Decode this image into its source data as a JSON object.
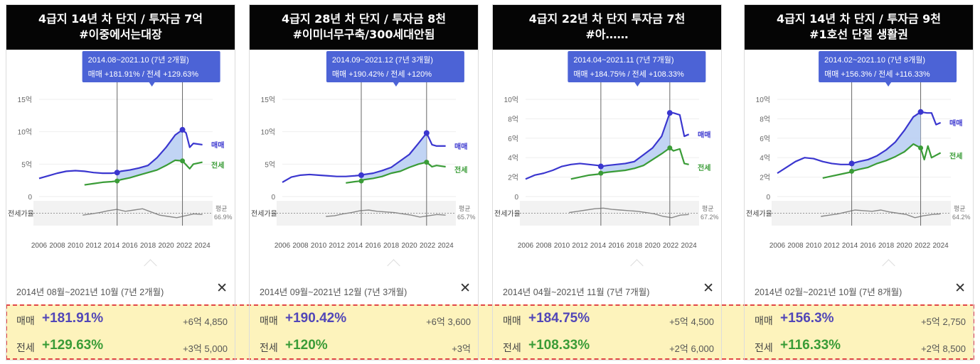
{
  "colors": {
    "sale": "#3a36cf",
    "rent": "#3a9c37",
    "fill": "#b6ccf2",
    "ratio": "#888888",
    "tooltip": "#4c63d6",
    "highlight": "#fdf3bc",
    "border_dashed": "#e24646"
  },
  "icons": {
    "close": "close-icon"
  },
  "chart_data": [
    {
      "type": "line",
      "title_line1": "4급지 14년 차 단지 / 투자금 7억",
      "title_line2": "#이중에서는대장",
      "x_ticks": [
        "2006",
        "2008",
        "2010",
        "2012",
        "2014",
        "2016",
        "2018",
        "2020",
        "2022",
        "2024"
      ],
      "xlim": [
        2006,
        2024.5
      ],
      "y_ticks": [
        "15억",
        "10억",
        "5억",
        "0"
      ],
      "y_tick_values": [
        15,
        10,
        5,
        0
      ],
      "ylim": [
        0,
        15
      ],
      "tooltip": {
        "line1": "2014.08~2021.10 (7년 2개월)",
        "line2": "매매 +181.91% / 전세 +129.63%"
      },
      "marker_start": 2014.6,
      "marker_end": 2021.8,
      "series": [
        {
          "name": "매매",
          "x": [
            2006,
            2007,
            2008,
            2009,
            2010,
            2011,
            2012,
            2013,
            2014,
            2014.6,
            2015,
            2016,
            2017,
            2018,
            2019,
            2020,
            2021,
            2021.8,
            2022.2,
            2022.6,
            2023,
            2024
          ],
          "values": [
            2.8,
            3.2,
            3.6,
            3.9,
            4.0,
            3.9,
            3.7,
            3.6,
            3.6,
            3.7,
            3.9,
            4.1,
            4.4,
            4.8,
            6.0,
            7.6,
            9.5,
            10.3,
            9.8,
            7.6,
            8.2,
            8.0
          ]
        },
        {
          "name": "전세",
          "x": [
            2011,
            2012,
            2013,
            2014,
            2014.6,
            2015,
            2016,
            2017,
            2018,
            2019,
            2020,
            2021,
            2021.8,
            2022.2,
            2022.6,
            2023,
            2024
          ],
          "values": [
            1.8,
            2.0,
            2.2,
            2.3,
            2.4,
            2.6,
            2.9,
            3.3,
            3.7,
            4.1,
            4.8,
            5.6,
            5.5,
            4.9,
            4.3,
            5.0,
            5.3
          ]
        }
      ],
      "ratio": {
        "label": "전세가율",
        "avg_label": "평균",
        "avg_value": "66.9%",
        "values": [
          62,
          64,
          66,
          69,
          71,
          68,
          70,
          72,
          67,
          62,
          60,
          58,
          61,
          64,
          63
        ]
      },
      "range_text": "2014년 08월~2021년 10월 (7년 2개월)",
      "sale": {
        "label": "매매",
        "pct": "+181.91%",
        "amount": "+6억 4,850"
      },
      "rent": {
        "label": "전세",
        "pct": "+129.63%",
        "amount": "+3억 5,000"
      }
    },
    {
      "type": "line",
      "title_line1": "4급지 28년 차 단지 / 투자금 8천",
      "title_line2": "#이미너무구축/300세대안됨",
      "x_ticks": [
        "2006",
        "2008",
        "2010",
        "2012",
        "2014",
        "2016",
        "2018",
        "2020",
        "2022",
        "2024"
      ],
      "xlim": [
        2006,
        2024.5
      ],
      "y_ticks": [
        "15억",
        "10억",
        "5억",
        "0"
      ],
      "y_tick_values": [
        15,
        10,
        5,
        0
      ],
      "ylim": [
        0,
        15
      ],
      "tooltip": {
        "line1": "2014.09~2021.12 (7년 3개월)",
        "line2": "매매 +190.42% / 전세 +120%"
      },
      "marker_start": 2014.7,
      "marker_end": 2021.9,
      "series": [
        {
          "name": "매매",
          "x": [
            2006,
            2007,
            2008,
            2009,
            2010,
            2011,
            2012,
            2013,
            2014,
            2014.7,
            2015,
            2016,
            2017,
            2018,
            2019,
            2020,
            2021,
            2021.9,
            2022.5,
            2023,
            2024
          ],
          "values": [
            2.2,
            3.0,
            3.3,
            3.4,
            3.3,
            3.2,
            3.1,
            3.1,
            3.2,
            3.3,
            3.4,
            3.6,
            4.0,
            4.5,
            5.5,
            6.5,
            8.2,
            9.8,
            8.0,
            7.8,
            7.8
          ]
        },
        {
          "name": "전세",
          "x": [
            2013,
            2014,
            2014.7,
            2015,
            2016,
            2017,
            2018,
            2019,
            2020,
            2021,
            2021.9,
            2022.5,
            2023,
            2024
          ],
          "values": [
            2.1,
            2.3,
            2.4,
            2.6,
            2.8,
            3.1,
            3.6,
            3.9,
            4.5,
            5.0,
            5.3,
            4.6,
            4.8,
            4.6
          ]
        }
      ],
      "ratio": {
        "label": "전세가율",
        "avg_label": "평균",
        "avg_value": "65.7%",
        "values": [
          60,
          61,
          64,
          66,
          69,
          70,
          68,
          67,
          66,
          64,
          62,
          59,
          61,
          63,
          62
        ]
      },
      "range_text": "2014년 09월~2021년 12월 (7년 3개월)",
      "sale": {
        "label": "매매",
        "pct": "+190.42%",
        "amount": "+6억 3,600"
      },
      "rent": {
        "label": "전세",
        "pct": "+120%",
        "amount": "+3억"
      }
    },
    {
      "type": "line",
      "title_line1": "4급지 22년 차 단지 투자금 7천",
      "title_line2": "#아……",
      "x_ticks": [
        "2006",
        "2008",
        "2010",
        "2012",
        "2014",
        "2016",
        "2018",
        "2020",
        "2022",
        "2024"
      ],
      "xlim": [
        2006,
        2024.5
      ],
      "y_ticks": [
        "10억",
        "8억",
        "6억",
        "4억",
        "2억",
        "0"
      ],
      "y_tick_values": [
        10,
        8,
        6,
        4,
        2,
        0
      ],
      "ylim": [
        0,
        10
      ],
      "tooltip": {
        "line1": "2014.04~2021.11 (7년 7개월)",
        "line2": "매매 +184.75% / 전세 +108.33%"
      },
      "marker_start": 2014.3,
      "marker_end": 2021.9,
      "series": [
        {
          "name": "매매",
          "x": [
            2006,
            2007,
            2008,
            2009,
            2010,
            2011,
            2012,
            2013,
            2014,
            2014.3,
            2015,
            2016,
            2017,
            2018,
            2019,
            2020,
            2021,
            2021.9,
            2022.3,
            2023,
            2023.5,
            2024
          ],
          "values": [
            1.8,
            2.2,
            2.4,
            2.7,
            3.1,
            3.3,
            3.4,
            3.3,
            3.2,
            3.1,
            3.2,
            3.3,
            3.4,
            3.6,
            4.3,
            5.0,
            6.2,
            8.6,
            8.6,
            8.4,
            6.2,
            6.4
          ]
        },
        {
          "name": "전세",
          "x": [
            2011,
            2012,
            2013,
            2014,
            2014.3,
            2015,
            2016,
            2017,
            2018,
            2019,
            2020,
            2021,
            2021.9,
            2022.3,
            2023,
            2023.5,
            2024
          ],
          "values": [
            1.8,
            2.0,
            2.2,
            2.3,
            2.4,
            2.5,
            2.6,
            2.7,
            2.9,
            3.2,
            3.8,
            4.4,
            5.0,
            4.7,
            4.9,
            3.4,
            3.3
          ]
        }
      ],
      "ratio": {
        "label": "전세가율",
        "avg_label": "평균",
        "avg_value": "67.2%",
        "values": [
          66,
          68,
          70,
          72,
          73,
          71,
          70,
          69,
          68,
          66,
          64,
          60,
          58,
          62,
          63
        ]
      },
      "range_text": "2014년 04월~2021년 11월 (7년 7개월)",
      "sale": {
        "label": "매매",
        "pct": "+184.75%",
        "amount": "+5억 4,500"
      },
      "rent": {
        "label": "전세",
        "pct": "+108.33%",
        "amount": "+2억 6,000"
      }
    },
    {
      "type": "line",
      "title_line1": "4급지 14년 차 단지 / 투자금 9천",
      "title_line2": "#1호선 단절 생활권",
      "x_ticks": [
        "2006",
        "2008",
        "2010",
        "2012",
        "2014",
        "2016",
        "2018",
        "2020",
        "2022",
        "2024"
      ],
      "xlim": [
        2006,
        2024.5
      ],
      "y_ticks": [
        "10억",
        "8억",
        "6억",
        "4억",
        "2억",
        "0"
      ],
      "y_tick_values": [
        10,
        8,
        6,
        4,
        2,
        0
      ],
      "ylim": [
        0,
        10
      ],
      "tooltip": {
        "line1": "2014.02~2021.10 (7년 8개월)",
        "line2": "매매 +156.3% / 전세 +116.33%"
      },
      "marker_start": 2014.2,
      "marker_end": 2021.8,
      "series": [
        {
          "name": "매매",
          "x": [
            2006,
            2007,
            2008,
            2009,
            2010,
            2011,
            2012,
            2013,
            2014,
            2014.2,
            2015,
            2016,
            2017,
            2018,
            2019,
            2020,
            2021,
            2021.8,
            2022.5,
            2023,
            2023.5,
            2024
          ],
          "values": [
            2.4,
            3.0,
            3.6,
            4.0,
            3.9,
            3.6,
            3.4,
            3.3,
            3.3,
            3.4,
            3.6,
            3.8,
            4.2,
            4.8,
            5.6,
            6.8,
            8.2,
            8.7,
            8.6,
            8.6,
            7.4,
            7.6
          ]
        },
        {
          "name": "전세",
          "x": [
            2011,
            2012,
            2013,
            2014,
            2014.2,
            2015,
            2016,
            2017,
            2018,
            2019,
            2020,
            2021,
            2021.8,
            2022.2,
            2022.6,
            2023,
            2024
          ],
          "values": [
            1.9,
            2.1,
            2.3,
            2.5,
            2.6,
            2.8,
            3.0,
            3.4,
            3.7,
            4.1,
            4.6,
            5.4,
            5.0,
            3.8,
            5.2,
            4.0,
            4.5
          ]
        }
      ],
      "ratio": {
        "label": "전세가율",
        "avg_label": "평균",
        "avg_value": "64.2%",
        "values": [
          60,
          62,
          64,
          67,
          70,
          69,
          68,
          70,
          67,
          65,
          63,
          58,
          61,
          63,
          64
        ]
      },
      "range_text": "2014년 02월~2021년 10월 (7년 8개월)",
      "sale": {
        "label": "매매",
        "pct": "+156.3%",
        "amount": "+5억 2,750"
      },
      "rent": {
        "label": "전세",
        "pct": "+116.33%",
        "amount": "+2억 8,500"
      }
    }
  ]
}
